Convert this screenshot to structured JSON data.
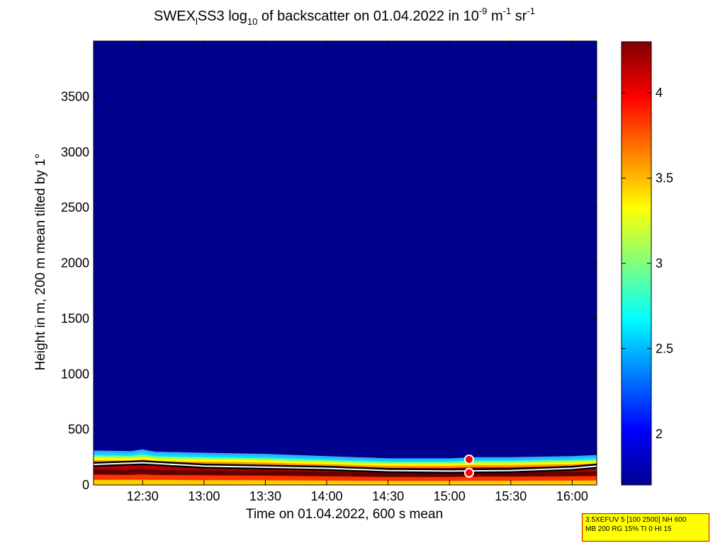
{
  "chart_data": {
    "type": "heatmap",
    "title_parts": {
      "pre": "SWEX",
      "sub1": "l",
      "mid": "SS3 log",
      "sub2": "10",
      "post": " of backscatter on 01.04.2022 in 10",
      "sup1": "-9",
      "unit1": " m",
      "sup2": "-1",
      "unit2": " sr",
      "sup3": "-1"
    },
    "xlabel": "Time on 01.04.2022, 600 s mean",
    "ylabel": "Height in m, 200 m mean tilted by 1°",
    "x_ticks": [
      "12:30",
      "13:00",
      "13:30",
      "14:00",
      "14:30",
      "15:00",
      "15:30",
      "16:00"
    ],
    "x_tick_hours": [
      12.5,
      13.0,
      13.5,
      14.0,
      14.5,
      15.0,
      15.5,
      16.0
    ],
    "xlim": [
      12.1,
      16.2
    ],
    "y_ticks": [
      "0",
      "500",
      "1000",
      "1500",
      "2000",
      "2500",
      "3000",
      "3500"
    ],
    "y_tick_values": [
      0,
      500,
      1000,
      1500,
      2000,
      2500,
      3000,
      3500
    ],
    "ylim": [
      0,
      4000
    ],
    "colorbar": {
      "ticks": [
        "2",
        "2.5",
        "3",
        "3.5",
        "4"
      ],
      "tick_values": [
        2,
        2.5,
        3,
        3.5,
        4
      ],
      "clim": [
        1.7,
        4.3
      ]
    },
    "boundary_layer_top_m": [
      [
        12.1,
        310
      ],
      [
        12.4,
        305
      ],
      [
        12.5,
        320
      ],
      [
        12.6,
        300
      ],
      [
        13.0,
        290
      ],
      [
        13.5,
        280
      ],
      [
        14.0,
        260
      ],
      [
        14.5,
        240
      ],
      [
        15.0,
        240
      ],
      [
        15.2,
        250
      ],
      [
        15.5,
        250
      ],
      [
        16.0,
        260
      ],
      [
        16.2,
        270
      ]
    ],
    "layer_marker_m": [
      [
        12.1,
        185
      ],
      [
        12.5,
        200
      ],
      [
        13.0,
        170
      ],
      [
        13.5,
        160
      ],
      [
        14.0,
        150
      ],
      [
        14.5,
        130
      ],
      [
        15.0,
        125
      ],
      [
        15.5,
        130
      ],
      [
        16.0,
        150
      ],
      [
        16.2,
        170
      ]
    ],
    "highlight_points": [
      {
        "x": 15.16,
        "y": 230
      },
      {
        "x": 15.16,
        "y": 110
      }
    ]
  },
  "info_box": {
    "line1": "3.5XEFUV 5 [100 2500] NH 600",
    "line2": "MB 200 RG 15% TI 0 HI 15"
  }
}
